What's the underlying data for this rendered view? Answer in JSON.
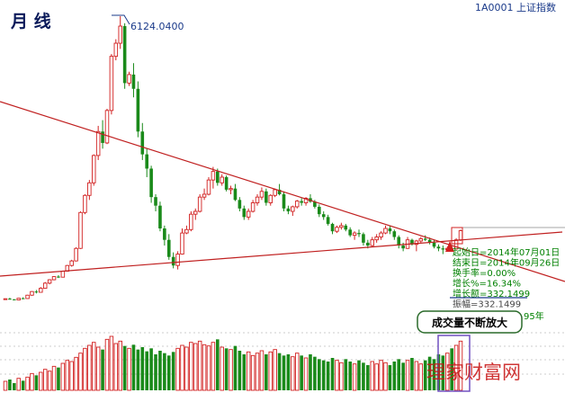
{
  "header": {
    "period_label": "月 线",
    "symbol_code": "1A0001",
    "symbol_name": "上证指数"
  },
  "colors": {
    "up": "#d22020",
    "down": "#1a8a1a",
    "trend": "#c02020",
    "info_text": "#008000",
    "info_text_dim": "#444444",
    "watermark": "#c81818",
    "volume_highlight": "#7050c0"
  },
  "info_box": {
    "lines": [
      "起始日=2014年07月01日",
      "结束日=2014年09月26日",
      "换手率=0.00%",
      "增长%=16.34%",
      "增长额=332.1499",
      "振幅=332.1499"
    ],
    "trailing_text": "95年"
  },
  "callout": {
    "text": "成交量不断放大"
  },
  "watermark": {
    "text": "理家财富网"
  },
  "chart_data": {
    "type": "candlestick",
    "interval": "monthly",
    "peak_annotation": "6124.0400",
    "trendlines": [
      "descending resistance from 2007 peak",
      "ascending support"
    ],
    "grid": "dotted horizontal lines in volume pane",
    "candles": [
      [
        1163,
        1172,
        1152,
        1167
      ],
      [
        1167,
        1185,
        1150,
        1156
      ],
      [
        1156,
        1160,
        1138,
        1145
      ],
      [
        1145,
        1180,
        1140,
        1175
      ],
      [
        1175,
        1192,
        1165,
        1170
      ],
      [
        1170,
        1235,
        1168,
        1229
      ],
      [
        1229,
        1300,
        1220,
        1293
      ],
      [
        1293,
        1320,
        1260,
        1280
      ],
      [
        1280,
        1370,
        1275,
        1350
      ],
      [
        1350,
        1460,
        1345,
        1440
      ],
      [
        1440,
        1510,
        1420,
        1500
      ],
      [
        1500,
        1560,
        1490,
        1555
      ],
      [
        1555,
        1580,
        1530,
        1545
      ],
      [
        1545,
        1660,
        1540,
        1650
      ],
      [
        1650,
        1760,
        1640,
        1750
      ],
      [
        1750,
        1850,
        1730,
        1830
      ],
      [
        1830,
        2070,
        1820,
        2050
      ],
      [
        2050,
        2700,
        2040,
        2680
      ],
      [
        2680,
        3000,
        2650,
        2980
      ],
      [
        2980,
        3250,
        2900,
        3200
      ],
      [
        3200,
        3700,
        3150,
        3680
      ],
      [
        3680,
        4200,
        3600,
        4100
      ],
      [
        4100,
        4300,
        3800,
        3900
      ],
      [
        3900,
        4500,
        3880,
        4470
      ],
      [
        4470,
        5460,
        4400,
        5420
      ],
      [
        5420,
        5720,
        5350,
        5650
      ],
      [
        5650,
        6124.04,
        5550,
        5950
      ],
      [
        5950,
        6000,
        4850,
        4950
      ],
      [
        4950,
        5150,
        4900,
        5100
      ],
      [
        5100,
        5300,
        4700,
        4850
      ],
      [
        4850,
        4980,
        4000,
        4100
      ],
      [
        4100,
        4250,
        3600,
        3700
      ],
      [
        3700,
        3800,
        3300,
        3450
      ],
      [
        3450,
        3500,
        2850,
        2950
      ],
      [
        2950,
        3000,
        2700,
        2800
      ],
      [
        2800,
        2870,
        2350,
        2400
      ],
      [
        2400,
        2450,
        2100,
        2200
      ],
      [
        2200,
        2300,
        1850,
        1900
      ],
      [
        1900,
        1980,
        1700,
        1750
      ],
      [
        1750,
        2000,
        1680,
        1950
      ],
      [
        1950,
        2400,
        1940,
        2320
      ],
      [
        2320,
        2450,
        2300,
        2380
      ],
      [
        2380,
        2700,
        2350,
        2650
      ],
      [
        2650,
        2750,
        2550,
        2700
      ],
      [
        2700,
        3000,
        2680,
        2950
      ],
      [
        2950,
        3100,
        2900,
        3000
      ],
      [
        3000,
        3300,
        2980,
        3250
      ],
      [
        3250,
        3480,
        3100,
        3400
      ],
      [
        3400,
        3450,
        3150,
        3200
      ],
      [
        3200,
        3350,
        3150,
        3300
      ],
      [
        3300,
        3330,
        3050,
        3080
      ],
      [
        3080,
        3150,
        3000,
        3100
      ],
      [
        3100,
        3180,
        2880,
        2900
      ],
      [
        2900,
        2950,
        2700,
        2750
      ],
      [
        2750,
        2800,
        2550,
        2600
      ],
      [
        2600,
        2750,
        2550,
        2700
      ],
      [
        2700,
        2900,
        2680,
        2850
      ],
      [
        2850,
        3000,
        2800,
        2950
      ],
      [
        2950,
        3120,
        2900,
        3050
      ],
      [
        3050,
        3100,
        2800,
        2850
      ],
      [
        2850,
        3000,
        2800,
        2980
      ],
      [
        2980,
        3100,
        2950,
        3080
      ],
      [
        3080,
        3180,
        2980,
        3000
      ],
      [
        3000,
        3050,
        2700,
        2750
      ],
      [
        2750,
        2800,
        2650,
        2700
      ],
      [
        2700,
        2800,
        2620,
        2780
      ],
      [
        2780,
        2900,
        2750,
        2880
      ],
      [
        2880,
        2930,
        2800,
        2850
      ],
      [
        2850,
        2950,
        2800,
        2930
      ],
      [
        2930,
        3000,
        2850,
        2870
      ],
      [
        2870,
        2900,
        2750,
        2780
      ],
      [
        2780,
        2820,
        2600,
        2650
      ],
      [
        2650,
        2700,
        2550,
        2600
      ],
      [
        2600,
        2640,
        2450,
        2480
      ],
      [
        2480,
        2500,
        2300,
        2350
      ],
      [
        2350,
        2450,
        2320,
        2420
      ],
      [
        2420,
        2500,
        2380,
        2450
      ],
      [
        2450,
        2480,
        2350,
        2380
      ],
      [
        2380,
        2420,
        2250,
        2280
      ],
      [
        2280,
        2350,
        2200,
        2320
      ],
      [
        2320,
        2380,
        2250,
        2300
      ],
      [
        2300,
        2330,
        2100,
        2150
      ],
      [
        2150,
        2200,
        2050,
        2100
      ],
      [
        2100,
        2250,
        2080,
        2200
      ],
      [
        2200,
        2300,
        2150,
        2250
      ],
      [
        2250,
        2350,
        2200,
        2320
      ],
      [
        2320,
        2450,
        2300,
        2400
      ],
      [
        2400,
        2450,
        2300,
        2350
      ],
      [
        2350,
        2380,
        2200,
        2250
      ],
      [
        2250,
        2280,
        2050,
        2100
      ],
      [
        2100,
        2150,
        2000,
        2050
      ],
      [
        2050,
        2250,
        2040,
        2200
      ],
      [
        2200,
        2220,
        2100,
        2120
      ],
      [
        2120,
        2200,
        2000,
        2180
      ],
      [
        2180,
        2250,
        2150,
        2220
      ],
      [
        2220,
        2280,
        2180,
        2200
      ],
      [
        2200,
        2240,
        2120,
        2150
      ],
      [
        2150,
        2200,
        2050,
        2080
      ],
      [
        2080,
        2120,
        2000,
        2050
      ],
      [
        2050,
        2100,
        1950,
        2030
      ],
      [
        2030,
        2080,
        2000,
        2050
      ],
      [
        2050,
        2100,
        2000,
        2040
      ],
      [
        2040,
        2230,
        2030,
        2200
      ],
      [
        2200,
        2380,
        2180,
        2360
      ]
    ],
    "volumes": [
      15,
      18,
      12,
      20,
      16,
      22,
      28,
      25,
      30,
      35,
      32,
      40,
      38,
      45,
      50,
      48,
      55,
      62,
      70,
      75,
      80,
      72,
      68,
      85,
      90,
      78,
      82,
      74,
      70,
      76,
      68,
      72,
      65,
      70,
      60,
      66,
      62,
      58,
      64,
      70,
      75,
      72,
      80,
      78,
      82,
      76,
      74,
      80,
      85,
      72,
      70,
      68,
      74,
      66,
      60,
      64,
      58,
      62,
      66,
      60,
      64,
      68,
      62,
      58,
      60,
      56,
      62,
      58,
      54,
      60,
      56,
      52,
      50,
      48,
      54,
      50,
      46,
      52,
      48,
      44,
      50,
      46,
      42,
      48,
      44,
      50,
      46,
      42,
      48,
      52,
      46,
      50,
      54,
      48,
      44,
      50,
      56,
      52,
      60,
      58,
      62,
      70,
      75,
      82
    ]
  }
}
